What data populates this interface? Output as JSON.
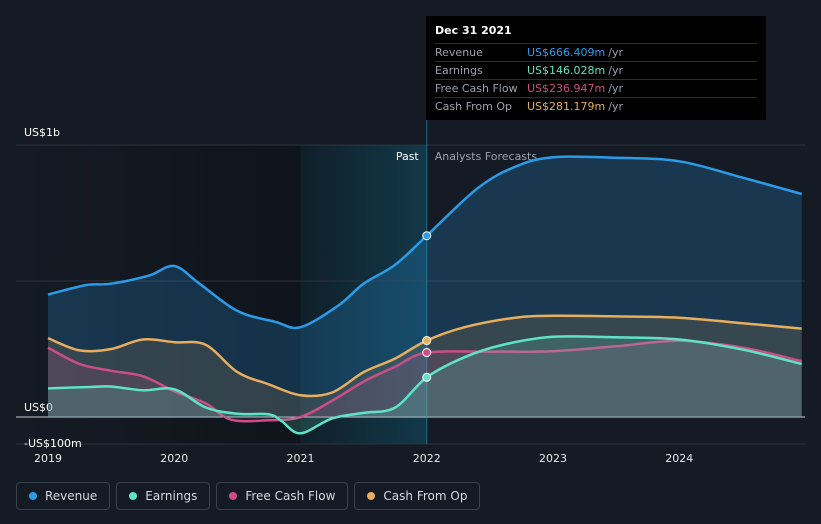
{
  "chart_data": {
    "type": "area",
    "y_tick_labels": [
      "US$1b",
      "US$0",
      "-US$100m"
    ],
    "x_tick_labels": [
      "2019",
      "2020",
      "2021",
      "2022",
      "2023",
      "2024"
    ],
    "ylim": [
      -100,
      1000
    ],
    "divider_labels": {
      "past": "Past",
      "forecast": "Analysts Forecasts"
    },
    "series": [
      {
        "name": "Revenue",
        "color": "#2b9be8",
        "points": [
          [
            2019.0,
            450
          ],
          [
            2019.3,
            485
          ],
          [
            2019.5,
            490
          ],
          [
            2019.8,
            520
          ],
          [
            2020.0,
            555
          ],
          [
            2020.2,
            490
          ],
          [
            2020.5,
            390
          ],
          [
            2020.8,
            350
          ],
          [
            2021.0,
            330
          ],
          [
            2021.3,
            410
          ],
          [
            2021.5,
            490
          ],
          [
            2021.75,
            560
          ],
          [
            2022.0,
            666.409
          ],
          [
            2022.4,
            840
          ],
          [
            2022.7,
            920
          ],
          [
            2023.0,
            955
          ],
          [
            2023.5,
            953
          ],
          [
            2024.0,
            940
          ],
          [
            2024.5,
            880
          ],
          [
            2024.97,
            820
          ]
        ]
      },
      {
        "name": "Earnings",
        "color": "#5fe3c6",
        "points": [
          [
            2019.0,
            105
          ],
          [
            2019.3,
            110
          ],
          [
            2019.5,
            112
          ],
          [
            2019.75,
            98
          ],
          [
            2020.0,
            102
          ],
          [
            2020.25,
            35
          ],
          [
            2020.5,
            12
          ],
          [
            2020.75,
            10
          ],
          [
            2020.85,
            -15
          ],
          [
            2021.0,
            -60
          ],
          [
            2021.25,
            -5
          ],
          [
            2021.5,
            15
          ],
          [
            2021.75,
            35
          ],
          [
            2022.0,
            146.028
          ],
          [
            2022.3,
            220
          ],
          [
            2022.6,
            265
          ],
          [
            2023.0,
            295
          ],
          [
            2023.5,
            293
          ],
          [
            2024.0,
            285
          ],
          [
            2024.5,
            248
          ],
          [
            2024.97,
            195
          ]
        ]
      },
      {
        "name": "Free Cash Flow",
        "color": "#cc4e86",
        "points": [
          [
            2019.0,
            255
          ],
          [
            2019.25,
            195
          ],
          [
            2019.5,
            170
          ],
          [
            2019.75,
            150
          ],
          [
            2020.0,
            95
          ],
          [
            2020.25,
            50
          ],
          [
            2020.45,
            -10
          ],
          [
            2020.75,
            -12
          ],
          [
            2021.0,
            0
          ],
          [
            2021.25,
            60
          ],
          [
            2021.5,
            130
          ],
          [
            2021.75,
            185
          ],
          [
            2022.0,
            236.947
          ],
          [
            2022.5,
            240
          ],
          [
            2023.0,
            242
          ],
          [
            2023.5,
            260
          ],
          [
            2024.0,
            280
          ],
          [
            2024.5,
            255
          ],
          [
            2024.97,
            205
          ]
        ]
      },
      {
        "name": "Cash From Op",
        "color": "#e8ad5d",
        "points": [
          [
            2019.0,
            290
          ],
          [
            2019.25,
            245
          ],
          [
            2019.5,
            250
          ],
          [
            2019.75,
            285
          ],
          [
            2020.0,
            275
          ],
          [
            2020.25,
            265
          ],
          [
            2020.5,
            165
          ],
          [
            2020.75,
            120
          ],
          [
            2021.0,
            80
          ],
          [
            2021.25,
            90
          ],
          [
            2021.5,
            165
          ],
          [
            2021.75,
            215
          ],
          [
            2022.0,
            281.179
          ],
          [
            2022.3,
            330
          ],
          [
            2022.7,
            365
          ],
          [
            2023.0,
            372
          ],
          [
            2023.5,
            370
          ],
          [
            2024.0,
            365
          ],
          [
            2024.5,
            345
          ],
          [
            2024.97,
            325
          ]
        ]
      }
    ]
  },
  "tooltip": {
    "date": "Dec 31 2021",
    "rows": [
      {
        "label": "Revenue",
        "value": "US$666.409m",
        "unit": "/yr",
        "color": "#2b9be8"
      },
      {
        "label": "Earnings",
        "value": "US$146.028m",
        "unit": "/yr",
        "color": "#5fe3c6"
      },
      {
        "label": "Free Cash Flow",
        "value": "US$236.947m",
        "unit": "/yr",
        "color": "#cc4e86"
      },
      {
        "label": "Cash From Op",
        "value": "US$281.179m",
        "unit": "/yr",
        "color": "#e8ad5d"
      }
    ]
  },
  "legend": [
    {
      "label": "Revenue",
      "color": "#2b9be8"
    },
    {
      "label": "Earnings",
      "color": "#5fe3c6"
    },
    {
      "label": "Free Cash Flow",
      "color": "#cc4e86"
    },
    {
      "label": "Cash From Op",
      "color": "#e8ad5d"
    }
  ]
}
